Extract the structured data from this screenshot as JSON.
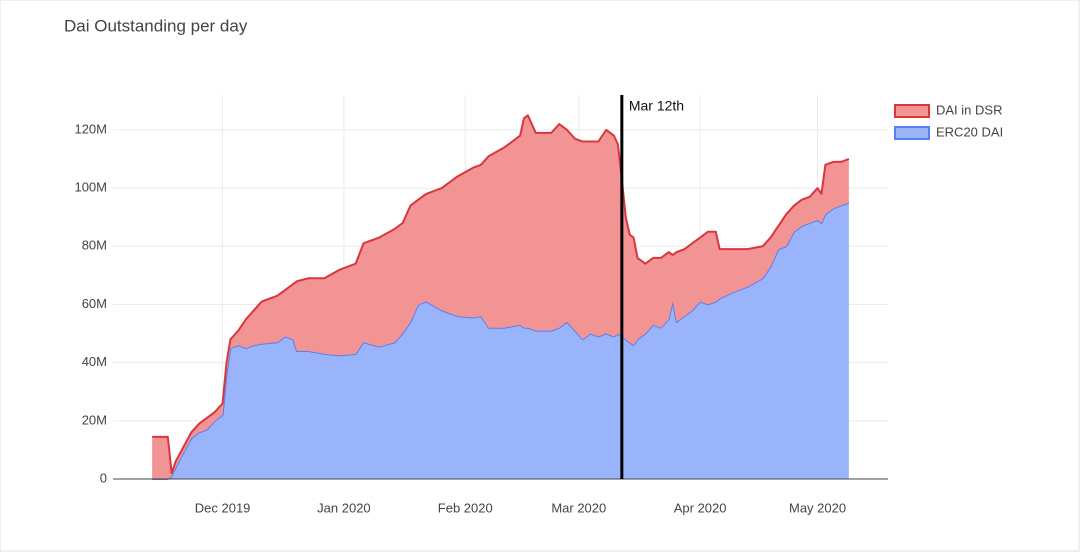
{
  "chart_data": {
    "type": "stacked_area",
    "title": "Dai Outstanding per day",
    "x": [
      -18,
      -14,
      -13,
      -12,
      -10,
      -8,
      -6,
      -4,
      -2,
      0,
      1,
      2,
      4,
      6,
      8,
      10,
      14,
      16,
      18,
      19,
      22,
      26,
      30,
      34,
      36,
      40,
      44,
      46,
      48,
      50,
      52,
      56,
      60,
      64,
      66,
      68,
      72,
      76,
      77,
      78,
      80,
      84,
      86,
      88,
      90,
      92,
      94,
      96,
      98,
      100,
      101,
      102,
      103,
      104,
      105,
      106,
      108,
      110,
      112,
      114,
      115,
      116,
      118,
      120,
      122,
      124,
      126,
      127,
      130,
      134,
      138,
      140,
      142,
      144,
      146,
      148,
      150,
      152,
      153,
      154,
      156,
      158,
      160
    ],
    "series": [
      {
        "name": "DAI in DSR",
        "color": "#d9363e",
        "fill": "#f29494",
        "values": [
          14500000,
          14500000,
          1000000,
          2000000,
          2000000,
          2000000,
          3000000,
          4000000,
          3000000,
          4000000,
          4000000,
          3000000,
          5000000,
          10000000,
          12000000,
          14500000,
          16000000,
          16000000,
          19000000,
          24000000,
          25000000,
          26000000,
          29500000,
          31000000,
          34000000,
          37500000,
          39000000,
          38000000,
          40000000,
          36000000,
          37000000,
          42000000,
          48000000,
          51500000,
          52000000,
          59000000,
          62000000,
          65000000,
          72000000,
          73000000,
          68000000,
          68000000,
          70000000,
          66000000,
          66000000,
          68000000,
          66000000,
          67000000,
          70000000,
          69000000,
          65000000,
          54000000,
          42000000,
          37000000,
          37000000,
          28000000,
          24000000,
          23000000,
          24000000,
          23000000,
          16000000,
          24000000,
          23000000,
          23000000,
          22000000,
          25000000,
          24000000,
          17000000,
          15000000,
          13000000,
          11000000,
          10000000,
          8000000,
          11000000,
          9000000,
          9000000,
          9000000,
          11000000,
          10000000,
          17000000,
          16000000,
          15000000,
          15000000
        ]
      },
      {
        "name": "ERC20 DAI",
        "color": "#5a7ff0",
        "fill": "#9ab4fb",
        "values": [
          0,
          0,
          1000000,
          4000000,
          9000000,
          14000000,
          16000000,
          17000000,
          20000000,
          22000000,
          36000000,
          45000000,
          46000000,
          45000000,
          46000000,
          46500000,
          47000000,
          49000000,
          48000000,
          44000000,
          44000000,
          43000000,
          42500000,
          43000000,
          47000000,
          45500000,
          47000000,
          50000000,
          54000000,
          60000000,
          61000000,
          58000000,
          56000000,
          55500000,
          56000000,
          52000000,
          52000000,
          53000000,
          52000000,
          52000000,
          51000000,
          51000000,
          52000000,
          54000000,
          51000000,
          48000000,
          50000000,
          49000000,
          50000000,
          49000000,
          50000000,
          49000000,
          48000000,
          47000000,
          46000000,
          48000000,
          50000000,
          53000000,
          52000000,
          55000000,
          61000000,
          54000000,
          56000000,
          58000000,
          61000000,
          60000000,
          61000000,
          62000000,
          64000000,
          66000000,
          69000000,
          73000000,
          79000000,
          80000000,
          85000000,
          87000000,
          88000000,
          89000000,
          88000000,
          91000000,
          93000000,
          94000000,
          95000000
        ]
      }
    ],
    "xlim": [
      -28,
      170
    ],
    "xticks": [
      {
        "value": 0,
        "label": "Dec 2019"
      },
      {
        "value": 31,
        "label": "Jan 2020"
      },
      {
        "value": 62,
        "label": "Feb 2020"
      },
      {
        "value": 91,
        "label": "Mar 2020"
      },
      {
        "value": 122,
        "label": "Apr 2020"
      },
      {
        "value": 152,
        "label": "May 2020"
      }
    ],
    "ylim": [
      0,
      132000000
    ],
    "yticks": [
      0,
      {
        "value": 20000000,
        "label": "20M"
      },
      {
        "value": 40000000,
        "label": "40M"
      },
      {
        "value": 60000000,
        "label": "60M"
      },
      {
        "value": 80000000,
        "label": "80M"
      },
      {
        "value": 100000000,
        "label": "100M"
      },
      {
        "value": 120000000,
        "label": "120M"
      }
    ],
    "vline": {
      "x": 102,
      "label": "Mar 12th"
    },
    "grid": true
  }
}
